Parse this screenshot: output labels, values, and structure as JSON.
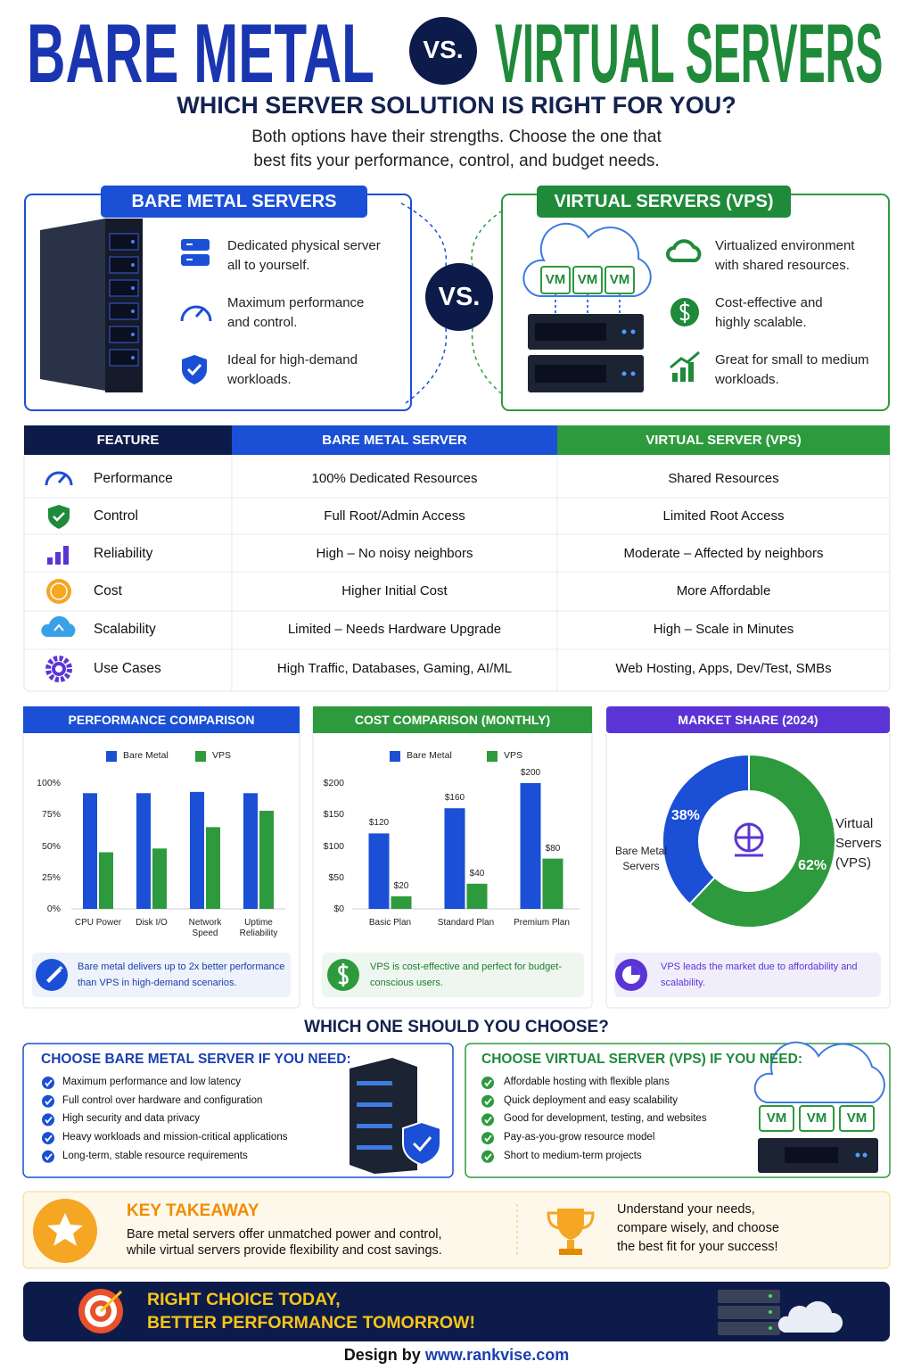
{
  "header": {
    "title_left": "BARE METAL",
    "vs": "VS.",
    "title_right": "VIRTUAL SERVERS",
    "subtitle": "WHICH SERVER SOLUTION IS RIGHT FOR YOU?",
    "intro": [
      "Both options have their strengths. Choose the one that",
      "best fits your performance, control, and budget needs."
    ]
  },
  "overview": {
    "bare_metal": {
      "title": "BARE METAL SERVERS",
      "features": [
        [
          "Dedicated physical server",
          "all to yourself."
        ],
        [
          "Maximum performance",
          "and control."
        ],
        [
          "Ideal for high-demand",
          "workloads."
        ]
      ]
    },
    "vs": "VS.",
    "vps": {
      "title": "VIRTUAL SERVERS (VPS)",
      "vm_labels": [
        "VM",
        "VM",
        "VM"
      ],
      "features": [
        [
          "Virtualized environment",
          "with shared resources."
        ],
        [
          "Cost-effective and",
          "highly scalable."
        ],
        [
          "Great for small to medium",
          "workloads."
        ]
      ]
    }
  },
  "table": {
    "headers": [
      "FEATURE",
      "BARE METAL SERVER",
      "VIRTUAL SERVER (VPS)"
    ],
    "rows": [
      [
        "Performance",
        "100% Dedicated Resources",
        "Shared Resources"
      ],
      [
        "Control",
        "Full Root/Admin Access",
        "Limited Root Access"
      ],
      [
        "Reliability",
        "High – No noisy neighbors",
        "Moderate – Affected by neighbors"
      ],
      [
        "Cost",
        "Higher Initial Cost",
        "More Affordable"
      ],
      [
        "Scalability",
        "Limited – Needs Hardware Upgrade",
        "High – Scale in Minutes"
      ],
      [
        "Use Cases",
        "High Traffic, Databases, Gaming, AI/ML",
        "Web Hosting, Apps, Dev/Test, SMBs"
      ]
    ]
  },
  "chart_data": [
    {
      "type": "bar",
      "title": "PERFORMANCE COMPARISON",
      "categories": [
        "CPU Power",
        "Disk I/O",
        "Network Speed",
        "Uptime Reliability"
      ],
      "series": [
        {
          "name": "Bare Metal",
          "color": "#1a4fd6",
          "values": [
            92,
            92,
            93,
            92
          ]
        },
        {
          "name": "VPS",
          "color": "#2e9a3e",
          "values": [
            45,
            48,
            65,
            78
          ]
        }
      ],
      "ylim": [
        0,
        100
      ],
      "yticks": [
        {
          "value": 0,
          "label": "0%"
        },
        {
          "value": 25,
          "label": "25%"
        },
        {
          "value": 50,
          "label": "50%"
        },
        {
          "value": 75,
          "label": "75%"
        },
        {
          "value": 100,
          "label": "100%"
        }
      ],
      "note": "Bare metal delivers up to 2x better performance than VPS in high-demand scenarios."
    },
    {
      "type": "bar",
      "title": "COST COMPARISON (MONTHLY)",
      "categories": [
        "Basic Plan",
        "Standard Plan",
        "Premium Plan"
      ],
      "series": [
        {
          "name": "Bare Metal",
          "color": "#1a4fd6",
          "values": [
            120,
            160,
            200
          ],
          "value_labels": [
            "$120",
            "$160",
            "$200"
          ]
        },
        {
          "name": "VPS",
          "color": "#2e9a3e",
          "values": [
            20,
            40,
            80
          ],
          "value_labels": [
            "$20",
            "$40",
            "$80"
          ]
        }
      ],
      "ylim": [
        0,
        200
      ],
      "yticks": [
        {
          "value": 0,
          "label": "$0"
        },
        {
          "value": 50,
          "label": "$50"
        },
        {
          "value": 100,
          "label": "$100"
        },
        {
          "value": 150,
          "label": "$150"
        },
        {
          "value": 200,
          "label": "$200"
        }
      ],
      "note": "VPS is cost-effective and perfect for budget-conscious users."
    },
    {
      "type": "pie",
      "donut": true,
      "title": "MARKET SHARE (2024)",
      "categories": [
        "Bare Metal Servers",
        "Virtual Servers (VPS)"
      ],
      "values": [
        38,
        62
      ],
      "value_labels": [
        "38%",
        "62%"
      ],
      "colors": [
        "#1a4fd6",
        "#2e9a3e"
      ],
      "note": "VPS leads the market due to affordability and scalability."
    }
  ],
  "choose": {
    "title": "WHICH ONE SHOULD YOU CHOOSE?",
    "bare_metal": {
      "heading": "CHOOSE BARE METAL SERVER IF YOU NEED:",
      "items": [
        "Maximum performance and low latency",
        "Full control over hardware and configuration",
        "High security and data privacy",
        "Heavy workloads and mission-critical applications",
        "Long-term, stable resource requirements"
      ]
    },
    "vps": {
      "heading": "CHOOSE VIRTUAL SERVER (VPS) IF YOU NEED:",
      "vm_labels": [
        "VM",
        "VM",
        "VM"
      ],
      "items": [
        "Affordable hosting with flexible plans",
        "Quick deployment and easy scalability",
        "Good for development, testing, and websites",
        "Pay-as-you-grow resource model",
        "Short to medium-term projects"
      ]
    }
  },
  "takeaway": {
    "title": "KEY TAKEAWAY",
    "text": [
      "Bare metal servers offer unmatched power and control,",
      "while virtual servers provide flexibility and cost savings."
    ],
    "advice": [
      "Understand your needs,",
      "compare wisely, and choose",
      "the best fit for your success!"
    ]
  },
  "banner": {
    "lines": [
      "RIGHT CHOICE TODAY,",
      "BETTER PERFORMANCE TOMORROW!"
    ]
  },
  "footer": {
    "label": "Design by",
    "url": "www.rankvise.com"
  }
}
